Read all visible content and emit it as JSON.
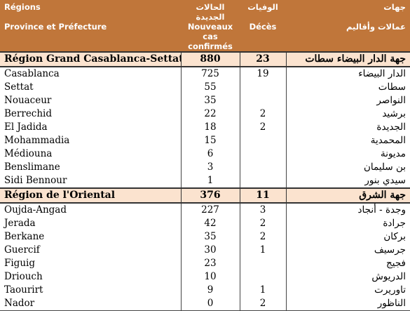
{
  "header": {
    "row1": {
      "region_fr": "Régions",
      "cases_ar": "الحالات الجديدة",
      "deaths_ar": "الوفيات",
      "region_ar": "جهات"
    },
    "row2": {
      "province_fr": "Province et Préfecture",
      "cases_fr_line1": "Nouveaux cas",
      "cases_fr_line2": "confirmés",
      "deaths_fr": "Décès",
      "province_ar": "عمالات وأقاليم"
    }
  },
  "regions": [
    {
      "name_fr": "Région Grand Casablanca-Settat",
      "cases": "880",
      "deaths": "23",
      "name_ar": "جهة الدار البيضاء سطات",
      "provinces": [
        {
          "fr": "Casablanca",
          "cases": "725",
          "deaths": "19",
          "ar": "الدار البيضاء"
        },
        {
          "fr": "Settat",
          "cases": "55",
          "deaths": "",
          "ar": "سطات"
        },
        {
          "fr": "Nouaceur",
          "cases": "35",
          "deaths": "",
          "ar": "النواصر"
        },
        {
          "fr": "Berrechid",
          "cases": "22",
          "deaths": "2",
          "ar": "برشيد"
        },
        {
          "fr": "El Jadida",
          "cases": "18",
          "deaths": "2",
          "ar": "الجديدة"
        },
        {
          "fr": "Mohammadia",
          "cases": "15",
          "deaths": "",
          "ar": "المحمدية"
        },
        {
          "fr": "Médiouna",
          "cases": "6",
          "deaths": "",
          "ar": "مديونة"
        },
        {
          "fr": "Benslimane",
          "cases": "3",
          "deaths": "",
          "ar": "بن سليمان"
        },
        {
          "fr": "Sidi Bennour",
          "cases": "1",
          "deaths": "",
          "ar": "سيدي بنور"
        }
      ]
    },
    {
      "name_fr": "Région de l'Oriental",
      "cases": "376",
      "deaths": "11",
      "name_ar": "جهة الشرق",
      "provinces": [
        {
          "fr": "Oujda-Angad",
          "cases": "227",
          "deaths": "3",
          "ar": "وجدة - أنجاد"
        },
        {
          "fr": "Jerada",
          "cases": "42",
          "deaths": "2",
          "ar": "جرادة"
        },
        {
          "fr": "Berkane",
          "cases": "35",
          "deaths": "2",
          "ar": "بركان"
        },
        {
          "fr": "Guercif",
          "cases": "30",
          "deaths": "1",
          "ar": "جرسيف"
        },
        {
          "fr": "Figuig",
          "cases": "23",
          "deaths": "",
          "ar": "فجيج"
        },
        {
          "fr": "Driouch",
          "cases": "10",
          "deaths": "",
          "ar": "الدريوش"
        },
        {
          "fr": "Taourirt",
          "cases": "9",
          "deaths": "1",
          "ar": "تاوريرت"
        },
        {
          "fr": "Nador",
          "cases": "0",
          "deaths": "2",
          "ar": "الناظور"
        }
      ]
    }
  ],
  "colors": {
    "header_bg": "#c0763a",
    "region_bg": "#fbe3cf"
  }
}
